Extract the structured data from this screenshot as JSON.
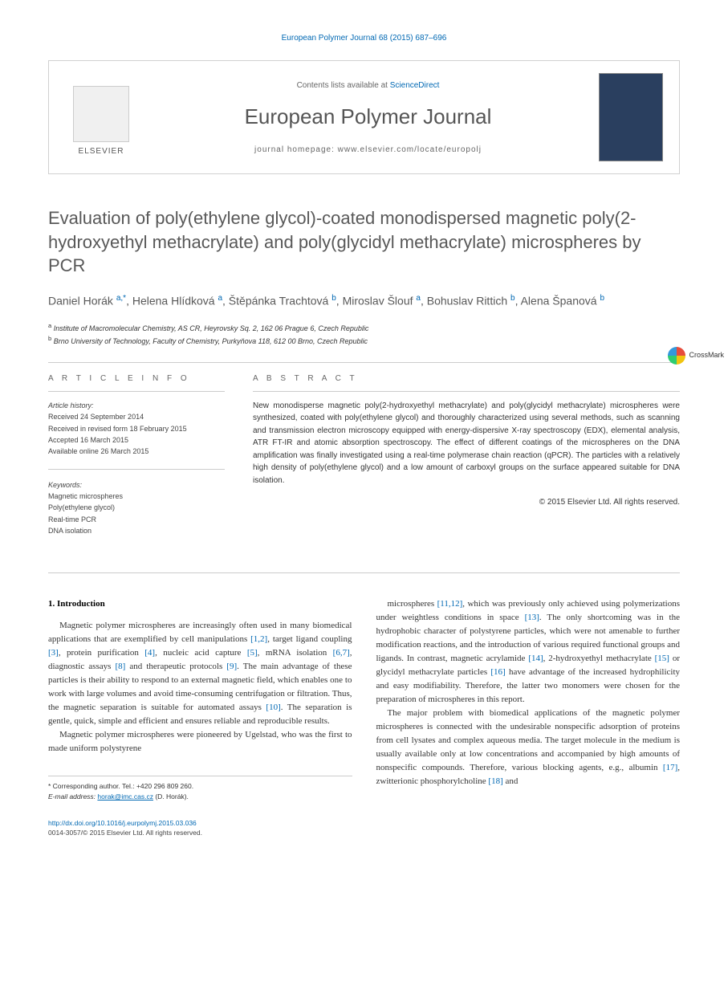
{
  "header": {
    "citation": "European Polymer Journal 68 (2015) 687–696",
    "contents_prefix": "Contents lists available at ",
    "contents_link": "ScienceDirect",
    "journal_name": "European Polymer Journal",
    "homepage_prefix": "journal homepage: ",
    "homepage_url": "www.elsevier.com/locate/europolj",
    "publisher": "ELSEVIER",
    "crossmark": "CrossMark"
  },
  "article": {
    "title": "Evaluation of poly(ethylene glycol)-coated monodispersed magnetic poly(2-hydroxyethyl methacrylate) and poly(glycidyl methacrylate) microspheres by PCR",
    "authors_html": "Daniel Horák <sup>a,*</sup>, Helena Hlídková <sup>a</sup>, Štěpánka Trachtová <sup>b</sup>, Miroslav Šlouf <sup>a</sup>, Bohuslav Rittich <sup>b</sup>, Alena Španová <sup>b</sup>",
    "affiliations": {
      "a": "Institute of Macromolecular Chemistry, AS CR, Heyrovsky Sq. 2, 162 06 Prague 6, Czech Republic",
      "b": "Brno University of Technology, Faculty of Chemistry, Purkyňova 118, 612 00 Brno, Czech Republic"
    }
  },
  "info": {
    "heading": "A R T I C L E   I N F O",
    "history_title": "Article history:",
    "history": [
      "Received 24 September 2014",
      "Received in revised form 18 February 2015",
      "Accepted 16 March 2015",
      "Available online 26 March 2015"
    ],
    "keywords_title": "Keywords:",
    "keywords": [
      "Magnetic microspheres",
      "Poly(ethylene glycol)",
      "Real-time PCR",
      "DNA isolation"
    ]
  },
  "abstract": {
    "heading": "A B S T R A C T",
    "text": "New monodisperse magnetic poly(2-hydroxyethyl methacrylate) and poly(glycidyl methacrylate) microspheres were synthesized, coated with poly(ethylene glycol) and thoroughly characterized using several methods, such as scanning and transmission electron microscopy equipped with energy-dispersive X-ray spectroscopy (EDX), elemental analysis, ATR FT-IR and atomic absorption spectroscopy. The effect of different coatings of the microspheres on the DNA amplification was finally investigated using a real-time polymerase chain reaction (qPCR). The particles with a relatively high density of poly(ethylene glycol) and a low amount of carboxyl groups on the surface appeared suitable for DNA isolation.",
    "copyright": "© 2015 Elsevier Ltd. All rights reserved."
  },
  "body": {
    "section1_heading": "1. Introduction",
    "para1": "Magnetic polymer microspheres are increasingly often used in many biomedical applications that are exemplified by cell manipulations [1,2], target ligand coupling [3], protein purification [4], nucleic acid capture [5], mRNA isolation [6,7], diagnostic assays [8] and therapeutic protocols [9]. The main advantage of these particles is their ability to respond to an external magnetic field, which enables one to work with large volumes and avoid time-consuming centrifugation or filtration. Thus, the magnetic separation is suitable for automated assays [10]. The separation is gentle, quick, simple and efficient and ensures reliable and reproducible results.",
    "para2": "Magnetic polymer microspheres were pioneered by Ugelstad, who was the first to made uniform polystyrene",
    "para3": "microspheres [11,12], which was previously only achieved using polymerizations under weightless conditions in space [13]. The only shortcoming was in the hydrophobic character of polystyrene particles, which were not amenable to further modification reactions, and the introduction of various required functional groups and ligands. In contrast, magnetic acrylamide [14], 2-hydroxyethyl methacrylate [15] or glycidyl methacrylate particles [16] have advantage of the increased hydrophilicity and easy modifiability. Therefore, the latter two monomers were chosen for the preparation of microspheres in this report.",
    "para4": "The major problem with biomedical applications of the magnetic polymer microspheres is connected with the undesirable nonspecific adsorption of proteins from cell lysates and complex aqueous media. The target molecule in the medium is usually available only at low concentrations and accompanied by high amounts of nonspecific compounds. Therefore, various blocking agents, e.g., albumin [17], zwitterionic phosphorylcholine [18] and"
  },
  "footer": {
    "corr_label": "* Corresponding author. Tel.: +420 296 809 260.",
    "email_label": "E-mail address: ",
    "email": "horak@imc.cas.cz",
    "email_suffix": " (D. Horák).",
    "doi": "http://dx.doi.org/10.1016/j.eurpolymj.2015.03.036",
    "issn_line": "0014-3057/© 2015 Elsevier Ltd. All rights reserved."
  },
  "colors": {
    "link": "#0068b3",
    "title_gray": "#585858",
    "border": "#cccccc"
  }
}
